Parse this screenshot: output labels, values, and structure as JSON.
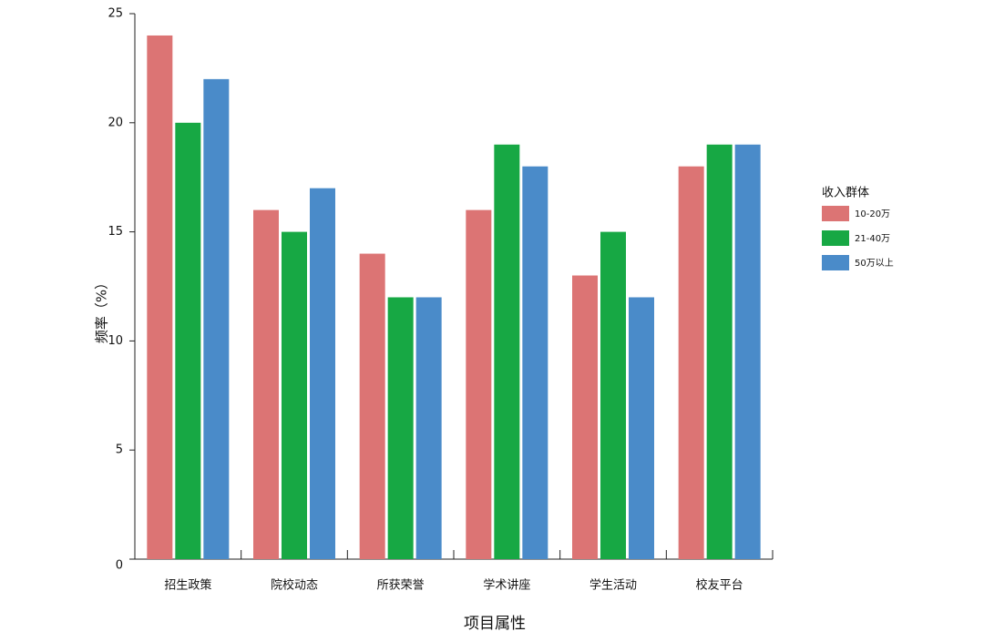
{
  "chart_data": {
    "type": "bar",
    "categories": [
      "招生政策",
      "院校动态",
      "所获荣誉",
      "学术讲座",
      "学生活动",
      "校友平台"
    ],
    "series": [
      {
        "name": "10-20万",
        "color": "#dc7474",
        "values": [
          24,
          16,
          14,
          16,
          13,
          18
        ]
      },
      {
        "name": "21-40万",
        "color": "#17a844",
        "values": [
          20,
          15,
          12,
          19,
          15,
          19
        ]
      },
      {
        "name": "50万以上",
        "color": "#4a8bc9",
        "values": [
          22,
          17,
          12,
          18,
          12,
          19
        ]
      }
    ],
    "x_label": "项目属性",
    "y_label": "频率（%）",
    "legend_title": "收入群体",
    "ylim": [
      0,
      25
    ],
    "yticks": [
      0,
      5,
      10,
      15,
      20,
      25
    ],
    "legend_position": "right"
  }
}
